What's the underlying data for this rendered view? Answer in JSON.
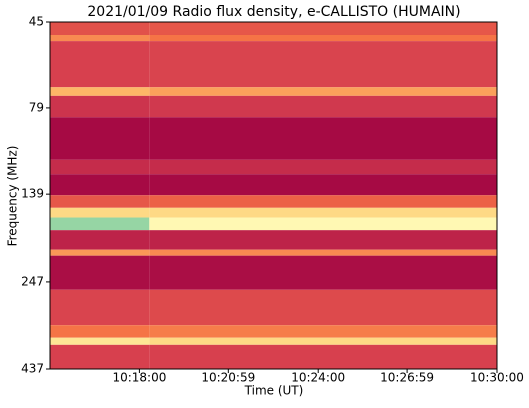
{
  "chart_data": {
    "type": "heatmap",
    "title": "2021/01/09  Radio flux density, e-CALLISTO (HUMAIN)",
    "x_label": "Time (UT)",
    "y_label": "Frequency (MHz)",
    "xlim": [
      "10:15:00",
      "10:30:00"
    ],
    "xticks": [
      "10:18:00",
      "10:20:59",
      "10:24:00",
      "10:26:59",
      "10:30:00"
    ],
    "x_edges": [
      "10:15:00",
      "10:18:20",
      "10:30:00"
    ],
    "ylim": [
      45,
      437
    ],
    "y_log": true,
    "y_inverted": true,
    "yticks": [
      45,
      79,
      139,
      247,
      437
    ],
    "y_edges": [
      45,
      49,
      51,
      69,
      73,
      84,
      111,
      122,
      140,
      152,
      162,
      176,
      200,
      208,
      260,
      328,
      356,
      373,
      437
    ],
    "z": [
      [
        0.2,
        0.22
      ],
      [
        0.35,
        0.3
      ],
      [
        0.15,
        0.16
      ],
      [
        0.45,
        0.4
      ],
      [
        0.12,
        0.13
      ],
      [
        0.02,
        0.02
      ],
      [
        0.1,
        0.1
      ],
      [
        0.02,
        0.02
      ],
      [
        0.22,
        0.25
      ],
      [
        0.55,
        0.55
      ],
      [
        0.9,
        0.68
      ],
      [
        0.08,
        0.08
      ],
      [
        0.38,
        0.35
      ],
      [
        0.03,
        0.03
      ],
      [
        0.16,
        0.18
      ],
      [
        0.3,
        0.32
      ],
      [
        0.6,
        0.55
      ],
      [
        0.15,
        0.15
      ]
    ],
    "zlim": [
      0,
      1
    ],
    "colorscale": [
      "#9e0142",
      "#d53e4f",
      "#f46d43",
      "#fdae61",
      "#fee08b",
      "#ffffbf",
      "#abdda4",
      "#66c2a5"
    ]
  }
}
